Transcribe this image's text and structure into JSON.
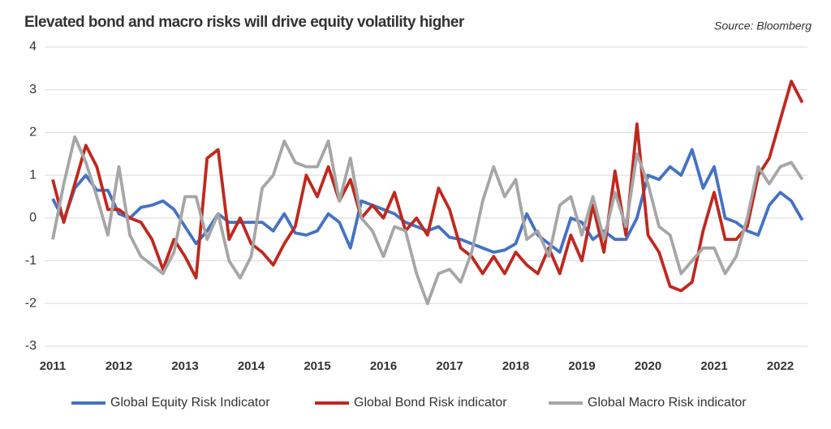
{
  "chart_data": {
    "type": "line",
    "title": "Elevated bond and macro risks will drive equity volatility higher",
    "source": "Source: Bloomberg",
    "categories": [
      "2011",
      null,
      null,
      null,
      null,
      null,
      "2012",
      null,
      null,
      null,
      null,
      null,
      "2013",
      null,
      null,
      null,
      null,
      null,
      "2014",
      null,
      null,
      null,
      null,
      null,
      "2015",
      null,
      null,
      null,
      null,
      null,
      "2016",
      null,
      null,
      null,
      null,
      null,
      "2017",
      null,
      null,
      null,
      null,
      null,
      "2018",
      null,
      null,
      null,
      null,
      null,
      "2019",
      null,
      null,
      null,
      null,
      null,
      "2020",
      null,
      null,
      null,
      null,
      null,
      "2021",
      null,
      null,
      null,
      null,
      null,
      "2022",
      null,
      null
    ],
    "series": [
      {
        "name": "Global Equity Risk Indicator",
        "color": "#4472c4",
        "values": [
          0.45,
          -0.05,
          0.7,
          1.0,
          0.65,
          0.65,
          0.1,
          0.0,
          0.25,
          0.3,
          0.4,
          0.2,
          -0.2,
          -0.6,
          -0.3,
          0.1,
          -0.1,
          -0.1,
          -0.1,
          -0.1,
          -0.3,
          0.1,
          -0.35,
          -0.4,
          -0.3,
          0.1,
          -0.1,
          -0.7,
          0.4,
          0.3,
          0.2,
          0.1,
          -0.1,
          -0.2,
          -0.3,
          -0.2,
          -0.45,
          -0.5,
          -0.6,
          -0.7,
          -0.8,
          -0.75,
          -0.6,
          0.1,
          -0.4,
          -0.6,
          -0.8,
          0.0,
          -0.1,
          -0.5,
          -0.3,
          -0.5,
          -0.5,
          0.0,
          1.0,
          0.9,
          1.2,
          1.0,
          1.6,
          0.7,
          1.2,
          0.0,
          -0.1,
          -0.3,
          -0.4,
          0.3,
          0.6,
          0.4,
          -0.05
        ]
      },
      {
        "name": "Global Bond Risk indicator",
        "color": "#c0281e",
        "values": [
          0.9,
          -0.1,
          0.8,
          1.7,
          1.2,
          0.2,
          0.2,
          0.0,
          -0.1,
          -0.5,
          -1.2,
          -0.5,
          -0.9,
          -1.4,
          1.4,
          1.6,
          -0.5,
          0.0,
          -0.6,
          -0.8,
          -1.1,
          -0.6,
          -0.2,
          1.0,
          0.5,
          1.2,
          0.4,
          0.9,
          0.0,
          0.3,
          0.0,
          0.6,
          -0.3,
          0.0,
          -0.4,
          0.7,
          0.2,
          -0.7,
          -0.9,
          -1.3,
          -0.9,
          -1.3,
          -0.8,
          -1.1,
          -1.3,
          -0.7,
          -1.3,
          -0.4,
          -1.0,
          0.3,
          -0.8,
          1.1,
          -0.4,
          2.2,
          -0.4,
          -0.8,
          -1.6,
          -1.7,
          -1.5,
          -0.3,
          0.6,
          -0.5,
          -0.5,
          -0.2,
          1.0,
          1.4,
          2.3,
          3.2,
          2.7
        ]
      },
      {
        "name": "Global Macro Risk indicator",
        "color": "#a6a6a6",
        "values": [
          -0.5,
          0.8,
          1.9,
          1.3,
          0.5,
          -0.4,
          1.2,
          -0.4,
          -0.9,
          -1.1,
          -1.3,
          -0.8,
          0.5,
          0.5,
          -0.5,
          0.1,
          -1.0,
          -1.4,
          -0.9,
          0.7,
          1.0,
          1.8,
          1.3,
          1.2,
          1.2,
          1.8,
          0.4,
          1.4,
          0.0,
          -0.3,
          -0.9,
          -0.2,
          -0.3,
          -1.3,
          -2.0,
          -1.3,
          -1.2,
          -1.5,
          -0.8,
          0.4,
          1.2,
          0.5,
          0.9,
          -0.5,
          -0.3,
          -0.9,
          0.3,
          0.5,
          -0.4,
          0.5,
          -0.5,
          0.6,
          -0.2,
          1.5,
          0.8,
          -0.2,
          -0.4,
          -1.3,
          -1.0,
          -0.7,
          -0.7,
          -1.3,
          -0.9,
          0.0,
          1.2,
          0.8,
          1.2,
          1.3,
          0.9
        ]
      }
    ],
    "ylim": [
      -3,
      4
    ],
    "yticks": [
      -3,
      -2,
      -1,
      0,
      1,
      2,
      3,
      4
    ],
    "grid": true
  }
}
